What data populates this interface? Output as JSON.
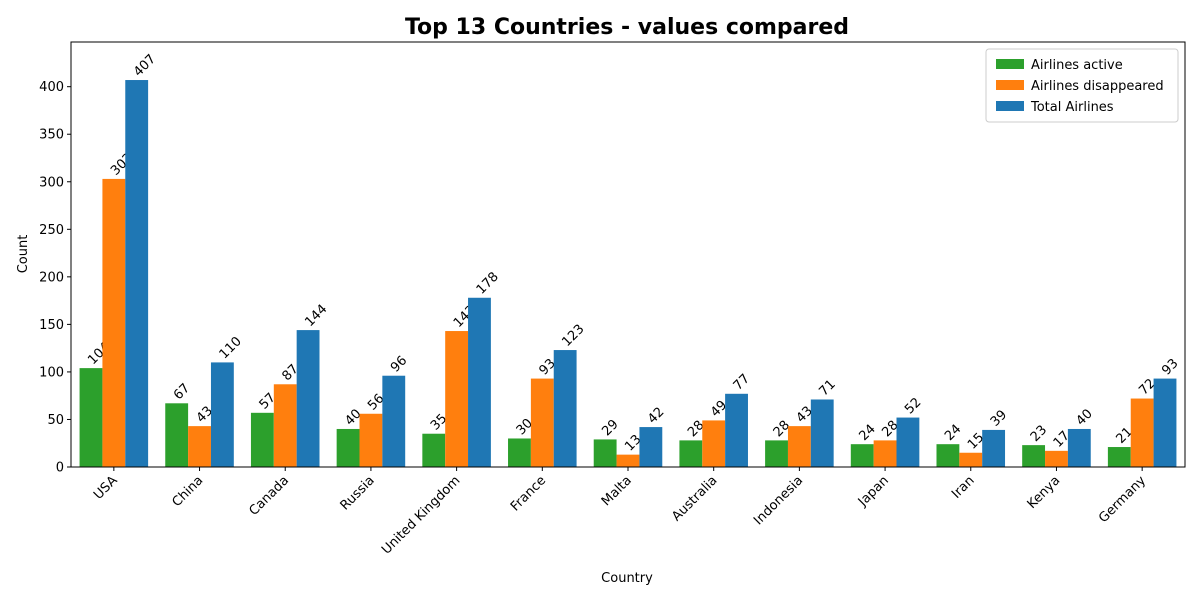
{
  "chart_data": {
    "type": "bar",
    "title": "Top 13 Countries - values compared",
    "xlabel": "Country",
    "ylabel": "Count",
    "ylim": [
      0,
      447
    ],
    "yticks": [
      0,
      50,
      100,
      150,
      200,
      250,
      300,
      350,
      400
    ],
    "grid": false,
    "legend_position": "top-right",
    "categories": [
      "USA",
      "China",
      "Canada",
      "Russia",
      "United Kingdom",
      "France",
      "Malta",
      "Australia",
      "Indonesia",
      "Japan",
      "Iran",
      "Kenya",
      "Germany"
    ],
    "series": [
      {
        "name": "Airlines active",
        "color": "#2ca02c",
        "values": [
          104,
          67,
          57,
          40,
          35,
          30,
          29,
          28,
          28,
          24,
          24,
          23,
          21
        ]
      },
      {
        "name": "Airlines disappeared",
        "color": "#ff7f0e",
        "values": [
          303,
          43,
          87,
          56,
          143,
          93,
          13,
          49,
          43,
          28,
          15,
          17,
          72
        ]
      },
      {
        "name": "Total Airlines",
        "color": "#1f77b4",
        "values": [
          407,
          110,
          144,
          96,
          178,
          123,
          42,
          77,
          71,
          52,
          39,
          40,
          93
        ]
      }
    ]
  }
}
